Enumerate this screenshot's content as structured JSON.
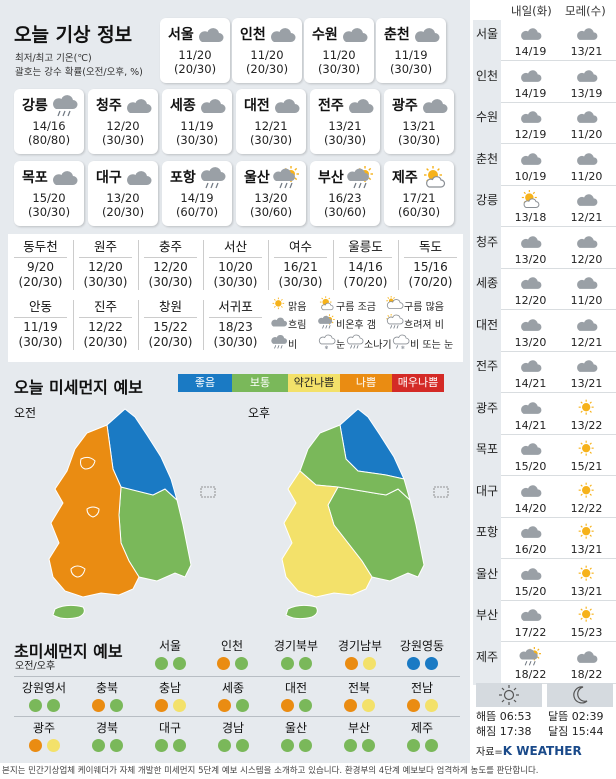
{
  "title_weather": "오늘 기상 정보",
  "legend_lines": [
    "최저/최고 기온(℃)",
    "괄호는 강수 확률(오전/오후, %)"
  ],
  "cards": [
    {
      "city": "서울",
      "temp": "11/20",
      "rain": "(20/30)",
      "icon": "cloud-icon"
    },
    {
      "city": "인천",
      "temp": "11/20",
      "rain": "(20/30)",
      "icon": "cloud-icon"
    },
    {
      "city": "수원",
      "temp": "11/20",
      "rain": "(30/30)",
      "icon": "cloud-icon"
    },
    {
      "city": "춘천",
      "temp": "11/19",
      "rain": "(30/30)",
      "icon": "cloud-icon"
    },
    {
      "city": "강릉",
      "temp": "14/16",
      "rain": "(80/80)",
      "icon": "rain-icon"
    },
    {
      "city": "청주",
      "temp": "12/20",
      "rain": "(30/30)",
      "icon": "cloud-icon"
    },
    {
      "city": "세종",
      "temp": "11/19",
      "rain": "(30/30)",
      "icon": "cloud-icon"
    },
    {
      "city": "대전",
      "temp": "12/21",
      "rain": "(30/30)",
      "icon": "cloud-icon"
    },
    {
      "city": "전주",
      "temp": "13/21",
      "rain": "(30/30)",
      "icon": "cloud-icon"
    },
    {
      "city": "광주",
      "temp": "13/21",
      "rain": "(30/30)",
      "icon": "cloud-icon"
    },
    {
      "city": "목포",
      "temp": "15/20",
      "rain": "(30/30)",
      "icon": "cloud-icon"
    },
    {
      "city": "대구",
      "temp": "13/20",
      "rain": "(20/30)",
      "icon": "cloud-icon"
    },
    {
      "city": "포항",
      "temp": "14/19",
      "rain": "(60/70)",
      "icon": "rain-icon"
    },
    {
      "city": "울산",
      "temp": "13/20",
      "rain": "(30/60)",
      "icon": "rain-after-clear-icon"
    },
    {
      "city": "부산",
      "temp": "16/23",
      "rain": "(30/60)",
      "icon": "rain-after-clear-icon"
    },
    {
      "city": "제주",
      "temp": "17/21",
      "rain": "(60/30)",
      "icon": "partly-cloudy-icon"
    }
  ],
  "small_cities": [
    {
      "name": "동두천",
      "temp": "9/20",
      "rain": "(20/30)"
    },
    {
      "name": "원주",
      "temp": "12/20",
      "rain": "(30/30)"
    },
    {
      "name": "충주",
      "temp": "12/20",
      "rain": "(30/30)"
    },
    {
      "name": "서산",
      "temp": "10/20",
      "rain": "(30/30)"
    },
    {
      "name": "여수",
      "temp": "16/21",
      "rain": "(30/30)"
    },
    {
      "name": "울릉도",
      "temp": "14/16",
      "rain": "(70/20)"
    },
    {
      "name": "독도",
      "temp": "15/16",
      "rain": "(70/20)"
    },
    {
      "name": "안동",
      "temp": "11/19",
      "rain": "(30/30)"
    },
    {
      "name": "진주",
      "temp": "12/22",
      "rain": "(20/30)"
    },
    {
      "name": "창원",
      "temp": "15/22",
      "rain": "(20/30)"
    },
    {
      "name": "서귀포",
      "temp": "18/23",
      "rain": "(30/30)"
    }
  ],
  "weather_legend": [
    {
      "label": "맑음",
      "icon": "sun-icon"
    },
    {
      "label": "구름 조금",
      "icon": "partly-cloudy-icon"
    },
    {
      "label": "구름 많음",
      "icon": "mostly-cloudy-icon"
    },
    {
      "label": "흐림",
      "icon": "cloud-icon"
    },
    {
      "label": "비온후 갬",
      "icon": "rain-after-clear-icon"
    },
    {
      "label": "흐려져 비",
      "icon": "rain-after-cloudy-icon"
    },
    {
      "label": "비",
      "icon": "rain-icon"
    },
    {
      "label": "눈",
      "icon": "snow-icon"
    },
    {
      "label": "소나기",
      "icon": "shower-icon"
    },
    {
      "label": "비 또는 눈",
      "icon": "sleet-icon"
    }
  ],
  "title_dust": "오늘 미세먼지 예보",
  "dust_scale": [
    {
      "label": "좋음",
      "color": "#1a7ac4",
      "text_color": "#ffffff"
    },
    {
      "label": "보통",
      "color": "#7ab85a",
      "text_color": "#ffffff"
    },
    {
      "label": "약간나쁨",
      "color": "#f3e16a",
      "text_color": "#222222"
    },
    {
      "label": "나쁨",
      "color": "#ea8c12",
      "text_color": "#ffffff"
    },
    {
      "label": "매우나쁨",
      "color": "#d42a26",
      "text_color": "#ffffff"
    }
  ],
  "map_am_label": "오전",
  "map_pm_label": "오후",
  "title_pm25": "초미세먼지 예보",
  "pm25_sub": "오전/오후",
  "pm25_regions": [
    {
      "name": "서울",
      "am": "#7ab85a",
      "pm": "#7ab85a"
    },
    {
      "name": "인천",
      "am": "#ea8c12",
      "pm": "#7ab85a"
    },
    {
      "name": "경기북부",
      "am": "#7ab85a",
      "pm": "#7ab85a"
    },
    {
      "name": "경기남부",
      "am": "#ea8c12",
      "pm": "#f3e16a"
    },
    {
      "name": "강원영동",
      "am": "#1a7ac4",
      "pm": "#1a7ac4"
    },
    {
      "name": "강원영서",
      "am": "#7ab85a",
      "pm": "#7ab85a"
    },
    {
      "name": "충북",
      "am": "#ea8c12",
      "pm": "#7ab85a"
    },
    {
      "name": "충남",
      "am": "#ea8c12",
      "pm": "#f3e16a"
    },
    {
      "name": "세종",
      "am": "#ea8c12",
      "pm": "#7ab85a"
    },
    {
      "name": "대전",
      "am": "#ea8c12",
      "pm": "#7ab85a"
    },
    {
      "name": "전북",
      "am": "#ea8c12",
      "pm": "#f3e16a"
    },
    {
      "name": "전남",
      "am": "#ea8c12",
      "pm": "#f3e16a"
    },
    {
      "name": "광주",
      "am": "#ea8c12",
      "pm": "#f3e16a"
    },
    {
      "name": "경북",
      "am": "#7ab85a",
      "pm": "#7ab85a"
    },
    {
      "name": "대구",
      "am": "#7ab85a",
      "pm": "#7ab85a"
    },
    {
      "name": "경남",
      "am": "#7ab85a",
      "pm": "#7ab85a"
    },
    {
      "name": "울산",
      "am": "#7ab85a",
      "pm": "#7ab85a"
    },
    {
      "name": "부산",
      "am": "#7ab85a",
      "pm": "#7ab85a"
    },
    {
      "name": "제주",
      "am": "#7ab85a",
      "pm": "#7ab85a"
    }
  ],
  "side_headers": [
    "내일(화)",
    "모레(수)"
  ],
  "side_rows": [
    {
      "city": "서울",
      "d1": {
        "temp": "14/19",
        "icon": "cloud-icon"
      },
      "d2": {
        "temp": "13/21",
        "icon": "cloud-icon"
      }
    },
    {
      "city": "인천",
      "d1": {
        "temp": "14/19",
        "icon": "cloud-icon"
      },
      "d2": {
        "temp": "13/19",
        "icon": "cloud-icon"
      }
    },
    {
      "city": "수원",
      "d1": {
        "temp": "12/19",
        "icon": "cloud-icon"
      },
      "d2": {
        "temp": "11/20",
        "icon": "cloud-icon"
      }
    },
    {
      "city": "춘천",
      "d1": {
        "temp": "10/19",
        "icon": "cloud-icon"
      },
      "d2": {
        "temp": "11/20",
        "icon": "cloud-icon"
      }
    },
    {
      "city": "강릉",
      "d1": {
        "temp": "13/18",
        "icon": "partly-cloudy-icon"
      },
      "d2": {
        "temp": "12/21",
        "icon": "cloud-icon"
      }
    },
    {
      "city": "청주",
      "d1": {
        "temp": "13/20",
        "icon": "cloud-icon"
      },
      "d2": {
        "temp": "12/20",
        "icon": "cloud-icon"
      }
    },
    {
      "city": "세종",
      "d1": {
        "temp": "12/20",
        "icon": "cloud-icon"
      },
      "d2": {
        "temp": "11/20",
        "icon": "cloud-icon"
      }
    },
    {
      "city": "대전",
      "d1": {
        "temp": "13/20",
        "icon": "cloud-icon"
      },
      "d2": {
        "temp": "12/21",
        "icon": "cloud-icon"
      }
    },
    {
      "city": "전주",
      "d1": {
        "temp": "14/21",
        "icon": "cloud-icon"
      },
      "d2": {
        "temp": "13/21",
        "icon": "cloud-icon"
      }
    },
    {
      "city": "광주",
      "d1": {
        "temp": "14/21",
        "icon": "cloud-icon"
      },
      "d2": {
        "temp": "13/22",
        "icon": "sun-icon"
      }
    },
    {
      "city": "목포",
      "d1": {
        "temp": "15/20",
        "icon": "cloud-icon"
      },
      "d2": {
        "temp": "15/21",
        "icon": "sun-icon"
      }
    },
    {
      "city": "대구",
      "d1": {
        "temp": "14/20",
        "icon": "cloud-icon"
      },
      "d2": {
        "temp": "12/22",
        "icon": "sun-icon"
      }
    },
    {
      "city": "포항",
      "d1": {
        "temp": "16/20",
        "icon": "cloud-icon"
      },
      "d2": {
        "temp": "13/21",
        "icon": "sun-icon"
      }
    },
    {
      "city": "울산",
      "d1": {
        "temp": "15/20",
        "icon": "cloud-icon"
      },
      "d2": {
        "temp": "13/21",
        "icon": "sun-icon"
      }
    },
    {
      "city": "부산",
      "d1": {
        "temp": "17/22",
        "icon": "cloud-icon"
      },
      "d2": {
        "temp": "15/23",
        "icon": "sun-icon"
      }
    },
    {
      "city": "제주",
      "d1": {
        "temp": "18/22",
        "icon": "rain-after-clear-icon"
      },
      "d2": {
        "temp": "18/22",
        "icon": "cloud-icon"
      }
    }
  ],
  "sun": {
    "rise": "해뜸 06:53",
    "set": "해짐 17:38"
  },
  "moon": {
    "rise": "달뜸 02:39",
    "set": "달짐 15:44"
  },
  "source_prefix": "자료=",
  "source_brand": "K WEATHER",
  "footer": "본지는 민간기상업체 케이웨더가 자체 개발한 미세먼지 5단계 예보 시스템을 소개하고 있습니다. 환경부의 4단계 예보보다 엄격하게 농도를 판단합니다.",
  "colors": {
    "panel_bg": "#e6eaee",
    "good": "#1a7ac4",
    "normal": "#7ab85a",
    "slightly_bad": "#f3e16a",
    "bad": "#ea8c12",
    "very_bad": "#d42a26"
  }
}
